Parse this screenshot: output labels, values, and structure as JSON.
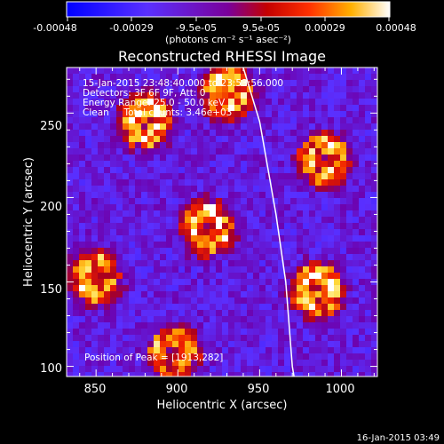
{
  "colorbar": {
    "ticks": [
      "-0.00048",
      "-0.00029",
      "-9.5e-05",
      "9.5e-05",
      "0.00029",
      "0.00048"
    ],
    "unit_label": "(photons cm⁻² s⁻¹ asec⁻²)"
  },
  "plot": {
    "title": "Reconstructed RHESSI Image",
    "xlabel": "Heliocentric X (arcsec)",
    "ylabel": "Heliocentric Y (arcsec)",
    "xticks": [
      "850",
      "900",
      "950",
      "1000"
    ],
    "yticks": [
      "100",
      "150",
      "200",
      "250"
    ],
    "info": [
      "15-Jan-2015 23:48:40.000 to 23:53:56.000",
      "Detectors: 3F 6F 9F, Att: 0",
      "Energy Range: 25.0 - 50.0 keV",
      "Clean     Total counts: 3.46e+03"
    ],
    "peak": "Position of Peak = [1913,282]",
    "footer": "16-Jan-2015 03:49"
  },
  "chart_data": {
    "type": "heatmap",
    "title": "Reconstructed RHESSI Image",
    "xlabel": "Heliocentric X (arcsec)",
    "ylabel": "Heliocentric Y (arcsec)",
    "xlim": [
      832,
      1022
    ],
    "ylim": [
      94,
      277
    ],
    "colorbar_range": [
      -0.00048,
      0.00048
    ],
    "sources": [
      {
        "x": 880,
        "y": 245,
        "strength": 1.0
      },
      {
        "x": 930,
        "y": 262,
        "strength": 0.9
      },
      {
        "x": 990,
        "y": 222,
        "strength": 0.9
      },
      {
        "x": 918,
        "y": 182,
        "strength": 1.0
      },
      {
        "x": 850,
        "y": 152,
        "strength": 0.85
      },
      {
        "x": 985,
        "y": 145,
        "strength": 1.0
      },
      {
        "x": 898,
        "y": 108,
        "strength": 0.8
      }
    ],
    "limb_points": [
      [
        940,
        277
      ],
      [
        950,
        245
      ],
      [
        960,
        190
      ],
      [
        966,
        150
      ],
      [
        970,
        100
      ],
      [
        971,
        94
      ]
    ],
    "peak": [
      1913,
      282
    ]
  }
}
